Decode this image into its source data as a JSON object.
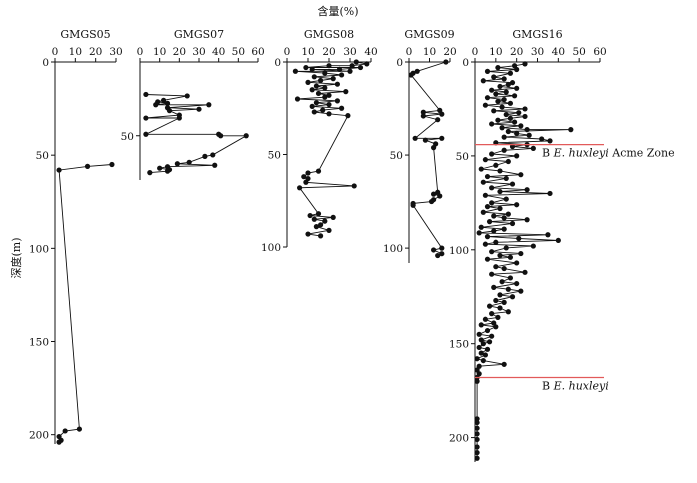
{
  "chart_data": {
    "type": "scatter",
    "x_axis_title": "含量(%)",
    "y_axis_title": "深度(m)",
    "colors": {
      "marker": "#111111",
      "line": "#111111",
      "boundary": "#e25a5a"
    },
    "panels": [
      {
        "name": "GMGS05",
        "xlim": [
          0,
          30
        ],
        "xticks": [
          0,
          10,
          20,
          30
        ],
        "ylim": [
          0,
          205
        ],
        "yticks": [
          0,
          50,
          100,
          150,
          200
        ],
        "ytick_labels_shown": true,
        "points": [
          [
            28,
            55
          ],
          [
            16,
            56
          ],
          [
            2,
            58
          ],
          [
            12,
            197
          ],
          [
            5,
            198
          ],
          [
            2,
            201
          ],
          [
            3,
            203
          ],
          [
            2,
            204
          ]
        ]
      },
      {
        "name": "GMGS07",
        "xlim": [
          0,
          60
        ],
        "xticks": [
          0,
          10,
          20,
          30,
          40,
          50,
          60
        ],
        "ylim": [
          0,
          80
        ],
        "yticks": [
          50
        ],
        "ytick_labels_shown": true,
        "points": [
          [
            3,
            22
          ],
          [
            24,
            23
          ],
          [
            12,
            26
          ],
          [
            9,
            27
          ],
          [
            14,
            28
          ],
          [
            8,
            29
          ],
          [
            35,
            29
          ],
          [
            14,
            31
          ],
          [
            30,
            32
          ],
          [
            15,
            33
          ],
          [
            20,
            36
          ],
          [
            3,
            38
          ],
          [
            20,
            38
          ],
          [
            3,
            49
          ],
          [
            40,
            49
          ],
          [
            41,
            50
          ],
          [
            54,
            50
          ],
          [
            37,
            63
          ],
          [
            33,
            64
          ],
          [
            25,
            68
          ],
          [
            19,
            69
          ],
          [
            38,
            70
          ],
          [
            14,
            71
          ],
          [
            10,
            72
          ],
          [
            15,
            73
          ],
          [
            14,
            74
          ],
          [
            5,
            75
          ]
        ]
      },
      {
        "name": "GMGS08",
        "xlim": [
          0,
          40
        ],
        "xticks": [
          0,
          10,
          20,
          30,
          40
        ],
        "ylim": [
          0,
          100
        ],
        "yticks": [
          0,
          50,
          100
        ],
        "ytick_labels_shown": true,
        "points": [
          [
            33,
            0
          ],
          [
            38,
            1
          ],
          [
            31,
            2
          ],
          [
            20,
            2
          ],
          [
            9,
            3
          ],
          [
            35,
            3
          ],
          [
            25,
            4
          ],
          [
            12,
            4
          ],
          [
            30,
            5
          ],
          [
            4,
            5
          ],
          [
            18,
            6
          ],
          [
            26,
            7
          ],
          [
            13,
            8
          ],
          [
            22,
            9
          ],
          [
            16,
            10
          ],
          [
            10,
            11
          ],
          [
            24,
            12
          ],
          [
            14,
            13
          ],
          [
            18,
            14
          ],
          [
            12,
            15
          ],
          [
            28,
            16
          ],
          [
            15,
            17
          ],
          [
            20,
            18
          ],
          [
            18,
            19
          ],
          [
            5,
            20
          ],
          [
            24,
            21
          ],
          [
            14,
            22
          ],
          [
            20,
            23
          ],
          [
            12,
            24
          ],
          [
            26,
            25
          ],
          [
            17,
            26
          ],
          [
            13,
            27
          ],
          [
            20,
            28
          ],
          [
            29,
            29
          ],
          [
            15,
            59
          ],
          [
            10,
            60
          ],
          [
            8,
            62
          ],
          [
            10,
            63
          ],
          [
            9,
            65
          ],
          [
            32,
            67
          ],
          [
            6,
            68
          ],
          [
            15,
            82
          ],
          [
            11,
            83
          ],
          [
            22,
            84
          ],
          [
            13,
            85
          ],
          [
            18,
            86
          ],
          [
            16,
            88
          ],
          [
            14,
            89
          ],
          [
            20,
            91
          ],
          [
            10,
            93
          ],
          [
            16,
            94
          ]
        ]
      },
      {
        "name": "GMGS09",
        "xlim": [
          0,
          20
        ],
        "xticks": [
          0,
          10,
          20
        ],
        "ylim": [
          0,
          108
        ],
        "yticks": [
          0,
          50,
          100
        ],
        "ytick_labels_shown": true,
        "points": [
          [
            18,
            0
          ],
          [
            4,
            5
          ],
          [
            2,
            6
          ],
          [
            1,
            7
          ],
          [
            15,
            26
          ],
          [
            7,
            27
          ],
          [
            16,
            28
          ],
          [
            7,
            29
          ],
          [
            14,
            31
          ],
          [
            3,
            41
          ],
          [
            16,
            41
          ],
          [
            8,
            42
          ],
          [
            13,
            44
          ],
          [
            12,
            46
          ],
          [
            14,
            70
          ],
          [
            12,
            71
          ],
          [
            15,
            72
          ],
          [
            12,
            74
          ],
          [
            11,
            75
          ],
          [
            2,
            76
          ],
          [
            2,
            77
          ],
          [
            16,
            100
          ],
          [
            12,
            101
          ],
          [
            16,
            103
          ],
          [
            14,
            104
          ]
        ]
      },
      {
        "name": "GMGS16",
        "xlim": [
          0,
          60
        ],
        "xticks": [
          0,
          10,
          20,
          30,
          40,
          50,
          60
        ],
        "ylim": [
          0,
          213
        ],
        "yticks": [
          0,
          50,
          100,
          150,
          200
        ],
        "ytick_labels_shown": true,
        "points": [
          [
            24,
            1
          ],
          [
            19,
            2
          ],
          [
            11,
            3
          ],
          [
            20,
            4
          ],
          [
            6,
            5
          ],
          [
            17,
            6
          ],
          [
            9,
            8
          ],
          [
            14,
            9
          ],
          [
            4,
            10
          ],
          [
            18,
            11
          ],
          [
            16,
            12
          ],
          [
            12,
            13
          ],
          [
            20,
            14
          ],
          [
            8,
            15
          ],
          [
            15,
            16
          ],
          [
            10,
            17
          ],
          [
            19,
            18
          ],
          [
            6,
            19
          ],
          [
            14,
            20
          ],
          [
            11,
            21
          ],
          [
            17,
            22
          ],
          [
            5,
            23
          ],
          [
            13,
            24
          ],
          [
            24,
            25
          ],
          [
            9,
            26
          ],
          [
            21,
            27
          ],
          [
            15,
            28
          ],
          [
            24,
            29
          ],
          [
            17,
            30
          ],
          [
            11,
            31
          ],
          [
            19,
            32
          ],
          [
            8,
            33
          ],
          [
            22,
            34
          ],
          [
            13,
            35
          ],
          [
            25,
            36
          ],
          [
            46,
            36
          ],
          [
            16,
            37
          ],
          [
            20,
            38
          ],
          [
            26,
            39
          ],
          [
            14,
            40
          ],
          [
            32,
            41
          ],
          [
            36,
            42
          ],
          [
            10,
            43
          ],
          [
            25,
            44
          ],
          [
            18,
            45
          ],
          [
            28,
            46
          ],
          [
            14,
            47
          ],
          [
            8,
            49
          ],
          [
            20,
            50
          ],
          [
            5,
            52
          ],
          [
            16,
            53
          ],
          [
            10,
            55
          ],
          [
            3,
            57
          ],
          [
            12,
            58
          ],
          [
            22,
            60
          ],
          [
            6,
            61
          ],
          [
            15,
            62
          ],
          [
            4,
            64
          ],
          [
            18,
            65
          ],
          [
            8,
            67
          ],
          [
            25,
            68
          ],
          [
            12,
            69
          ],
          [
            36,
            70
          ],
          [
            5,
            71
          ],
          [
            15,
            73
          ],
          [
            8,
            75
          ],
          [
            20,
            76
          ],
          [
            6,
            77
          ],
          [
            12,
            78
          ],
          [
            4,
            80
          ],
          [
            16,
            81
          ],
          [
            9,
            82
          ],
          [
            14,
            83
          ],
          [
            25,
            84
          ],
          [
            7,
            85
          ],
          [
            18,
            86
          ],
          [
            3,
            88
          ],
          [
            14,
            89
          ],
          [
            9,
            90
          ],
          [
            2,
            91
          ],
          [
            35,
            92
          ],
          [
            6,
            93
          ],
          [
            21,
            94
          ],
          [
            40,
            95
          ],
          [
            10,
            96
          ],
          [
            5,
            97
          ],
          [
            28,
            98
          ],
          [
            15,
            99
          ],
          [
            8,
            101
          ],
          [
            22,
            102
          ],
          [
            12,
            103
          ],
          [
            17,
            104
          ],
          [
            6,
            105
          ],
          [
            20,
            107
          ],
          [
            10,
            109
          ],
          [
            14,
            110
          ],
          [
            24,
            112
          ],
          [
            8,
            113
          ],
          [
            17,
            115
          ],
          [
            13,
            117
          ],
          [
            20,
            118
          ],
          [
            9,
            120
          ],
          [
            16,
            121
          ],
          [
            22,
            122
          ],
          [
            12,
            124
          ],
          [
            18,
            125
          ],
          [
            10,
            127
          ],
          [
            14,
            128
          ],
          [
            7,
            130
          ],
          [
            12,
            131
          ],
          [
            16,
            133
          ],
          [
            8,
            134
          ],
          [
            11,
            136
          ],
          [
            5,
            137
          ],
          [
            9,
            139
          ],
          [
            3,
            140
          ],
          [
            10,
            141
          ],
          [
            6,
            143
          ],
          [
            2,
            145
          ],
          [
            8,
            146
          ],
          [
            3,
            148
          ],
          [
            7,
            149
          ],
          [
            4,
            150
          ],
          [
            2,
            152
          ],
          [
            6,
            153
          ],
          [
            3,
            155
          ],
          [
            5,
            156
          ],
          [
            1,
            158
          ],
          [
            4,
            159
          ],
          [
            14,
            161
          ],
          [
            2,
            162
          ],
          [
            1,
            164
          ],
          [
            2,
            166
          ],
          [
            1,
            168
          ],
          [
            1,
            170
          ],
          [
            1,
            190
          ],
          [
            1,
            192
          ],
          [
            1,
            195
          ],
          [
            1,
            198
          ],
          [
            1,
            201
          ],
          [
            1,
            205
          ],
          [
            1,
            208
          ],
          [
            1,
            211
          ]
        ]
      }
    ],
    "boundaries": [
      {
        "panel": "GMGS16",
        "depth": 44,
        "prefix": "B ",
        "italic": "E. huxleyi",
        "suffix": " Acme Zone"
      },
      {
        "panel": "GMGS16",
        "depth": 168,
        "prefix": "B ",
        "italic": "E. huxleyi",
        "suffix": ""
      }
    ]
  }
}
